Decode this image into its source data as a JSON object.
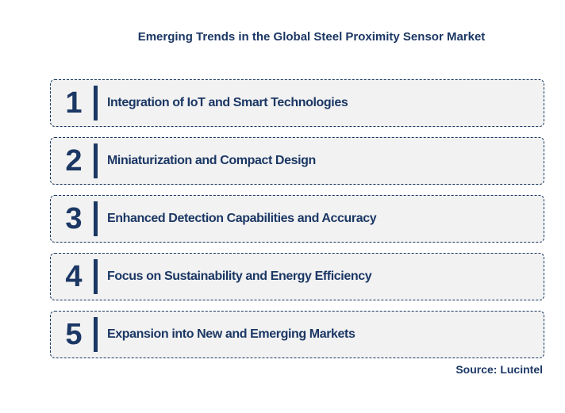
{
  "title": "Emerging Trends in the Global Steel Proximity Sensor Market",
  "trends": [
    {
      "number": "1",
      "label": "Integration of IoT and Smart Technologies"
    },
    {
      "number": "2",
      "label": "Miniaturization and Compact Design"
    },
    {
      "number": "3",
      "label": "Enhanced Detection Capabilities and Accuracy"
    },
    {
      "number": "4",
      "label": "Focus on Sustainability and Energy Efficiency"
    },
    {
      "number": "5",
      "label": "Expansion into New and Emerging Markets"
    }
  ],
  "source": "Source: Lucintel",
  "colors": {
    "navy": "#1b3764",
    "border": "#16365d",
    "box_background": "#f2f2f2",
    "page_background": "#ffffff"
  }
}
